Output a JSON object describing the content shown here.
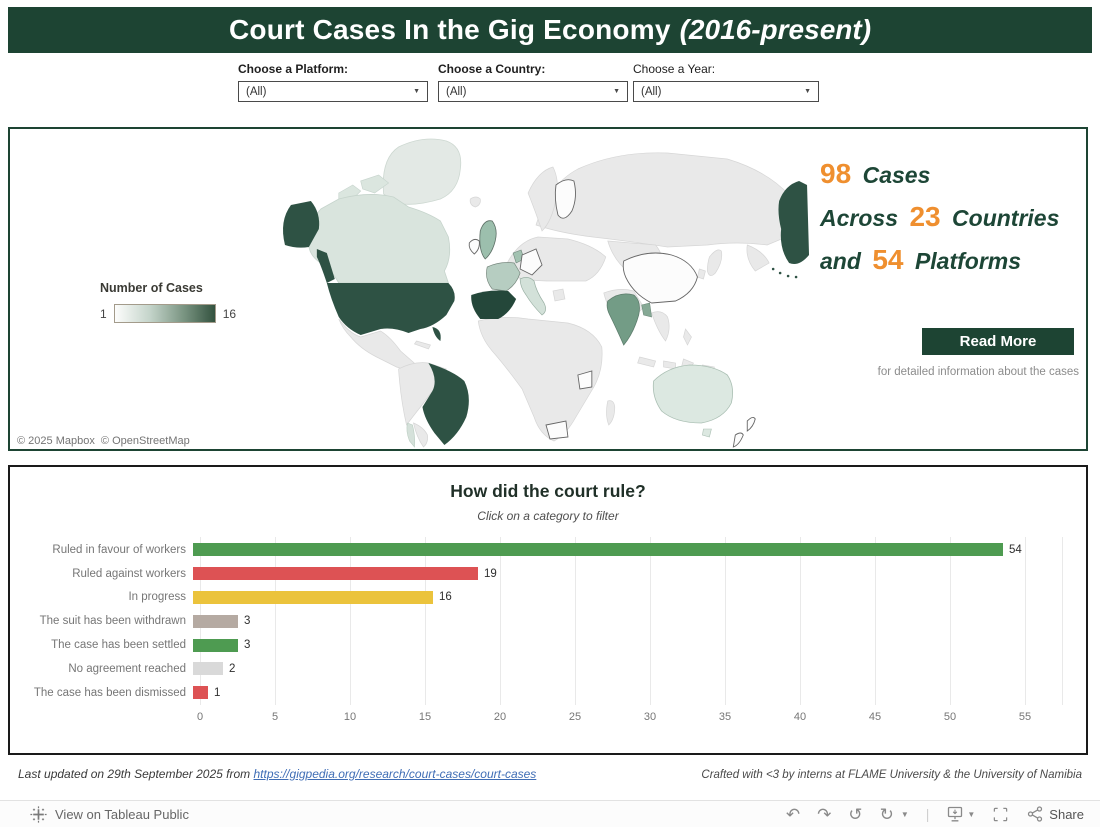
{
  "header": {
    "title": "Court Cases In the Gig Economy",
    "title_suffix": "(2016-present)"
  },
  "filters": [
    {
      "label": "Choose a Platform:",
      "value": "(All)"
    },
    {
      "label": "Choose a Country:",
      "value": "(All)"
    },
    {
      "label": "Choose a Year:",
      "value": "(All)"
    }
  ],
  "map": {
    "legend_title": "Number of Cases",
    "legend_min": "1",
    "legend_max": "16",
    "legend_min_color": "#ffffff",
    "legend_max_color": "#2e5244",
    "stats": {
      "cases_count": "98",
      "cases_word": "Cases",
      "across_word": "Across",
      "countries_count": "23",
      "countries_word": "Countries",
      "and_word": "and",
      "platforms_count": "54",
      "platforms_word": "Platforms"
    },
    "read_more_label": "Read More",
    "read_more_caption": "for detailed information about the cases",
    "attribution": "© 2025 Mapbox  © OpenStreetMap"
  },
  "chart_data": {
    "type": "bar",
    "orientation": "horizontal",
    "title": "How did the court rule?",
    "subtitle": "Click on a category to filter",
    "categories": [
      "Ruled in favour of workers",
      "Ruled against workers",
      "In progress",
      "The suit has been withdrawn",
      "The case has been settled",
      "No agreement reached",
      "The case has been dismissed"
    ],
    "values": [
      54,
      19,
      16,
      3,
      3,
      2,
      1
    ],
    "colors": [
      "#4e9b51",
      "#dd5254",
      "#ebc33c",
      "#b5aaa2",
      "#4e9b51",
      "#d9d9d9",
      "#dd5254"
    ],
    "xlim": [
      0,
      57
    ],
    "xticks": [
      0,
      5,
      10,
      15,
      20,
      25,
      30,
      35,
      40,
      45,
      50,
      55
    ],
    "grid": true,
    "legend_position": "none"
  },
  "footer": {
    "left_text": "Last updated on 29th September 2025 from ",
    "left_link": "https://gigpedia.org/research/court-cases/court-cases",
    "right_text": "Crafted with <3 by interns at FLAME University & the University of Namibia"
  },
  "toolbar": {
    "view_label": "View on Tableau Public",
    "share_label": "Share"
  },
  "colors": {
    "header_green": "#1d4433",
    "accent_orange": "#ef8f2f",
    "dark_green_text": "#1d4636",
    "map_max_green": "#2e5244",
    "bar_green": "#4e9b51",
    "bar_red": "#dd5254",
    "bar_yellow": "#ebc33c",
    "bar_taupe": "#b5aaa2",
    "bar_gray": "#d9d9d9",
    "link_blue": "#3f6db5"
  }
}
